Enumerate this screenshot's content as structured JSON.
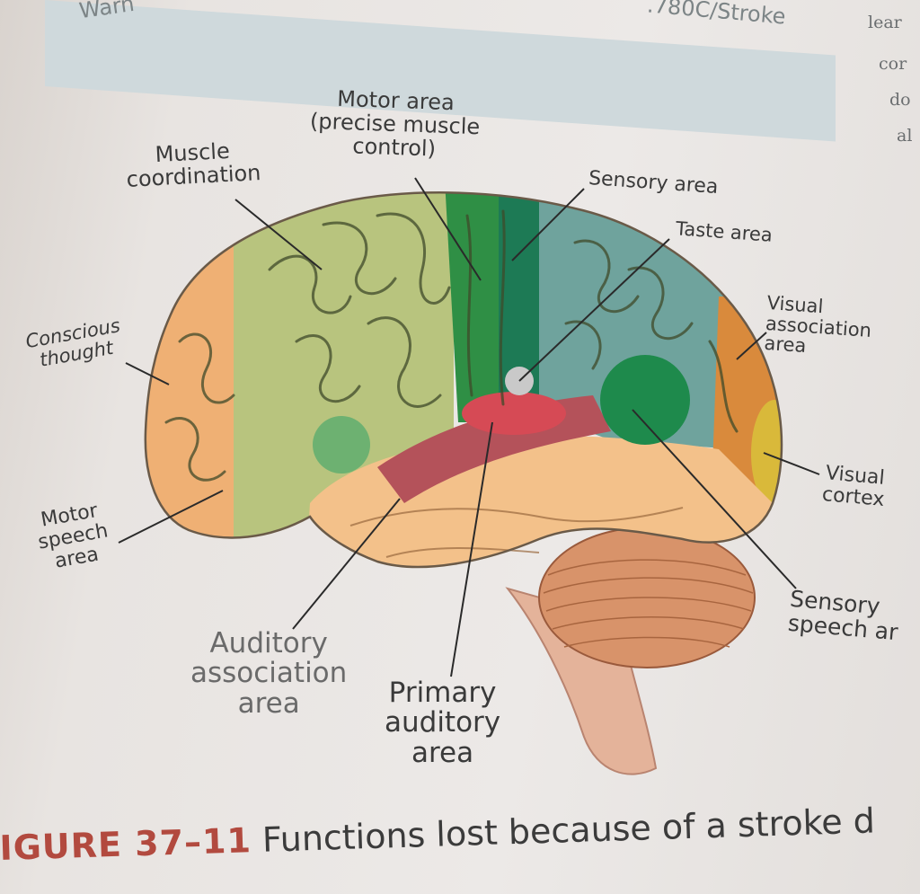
{
  "header": {
    "left_fragment": "Warn",
    "right_fragment": ".780C/Stroke"
  },
  "side_text": [
    "lear",
    "cor",
    "do",
    "al"
  ],
  "labels": {
    "muscle_coordination": [
      "Muscle",
      "coordination"
    ],
    "motor_area": [
      "Motor area",
      "(precise muscle",
      "control)"
    ],
    "sensory_area": [
      "Sensory area"
    ],
    "taste_area": [
      "Taste area"
    ],
    "conscious_thought": [
      "Conscious",
      "thought"
    ],
    "visual_association": [
      "Visual",
      "association",
      "area"
    ],
    "visual_cortex": [
      "Visual",
      "cortex"
    ],
    "motor_speech": [
      "Motor",
      "speech",
      "area"
    ],
    "auditory_association": [
      "Auditory",
      "association",
      "area"
    ],
    "primary_auditory": [
      "Primary",
      "auditory",
      "area"
    ],
    "sensory_speech": [
      "Sensory",
      "speech ar"
    ]
  },
  "caption": {
    "figure": "IGURE 37–11",
    "text": "Functions lost because of a stroke d"
  },
  "colors": {
    "frontal": "#efb074",
    "premotor": "#b8c47e",
    "motor": "#2f8f45",
    "sensory": "#1d7a55",
    "parietal": "#6fa39d",
    "occipital": "#d98a3c",
    "visual_cortex": "#d9b93a",
    "temporal": "#f3c18a",
    "auditory": "#b4525a",
    "cerebellum": "#d8936a"
  }
}
